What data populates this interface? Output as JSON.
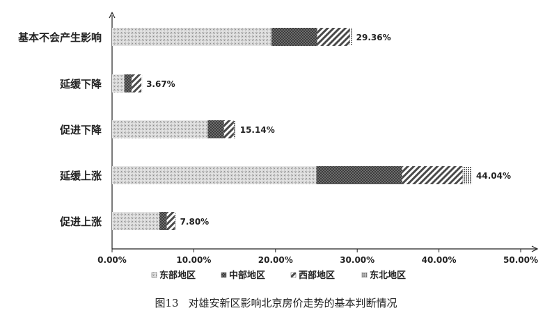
{
  "chart_data": {
    "type": "bar",
    "orientation": "horizontal",
    "stacked": true,
    "categories": [
      "基本不会产生影响",
      "延缓下降",
      "促进下降",
      "延缓上涨",
      "促进上涨"
    ],
    "series": [
      {
        "name": "东部地区",
        "values": [
          19.5,
          1.5,
          11.7,
          25.0,
          5.8
        ]
      },
      {
        "name": "中部地区",
        "values": [
          5.6,
          0.9,
          2.0,
          10.5,
          0.9
        ]
      },
      {
        "name": "西部地区",
        "values": [
          4.0,
          1.2,
          1.2,
          7.4,
          1.0
        ]
      },
      {
        "name": "东北地区",
        "values": [
          0.26,
          0.07,
          0.24,
          1.14,
          0.1
        ]
      }
    ],
    "totals_labels": [
      "29.36%",
      "3.67%",
      "15.14%",
      "44.04%",
      "7.80%"
    ],
    "xlim": [
      0,
      50
    ],
    "x_ticks": [
      "0.00%",
      "10.00%",
      "20.00%",
      "30.00%",
      "40.00%",
      "50.00%"
    ],
    "grid": false,
    "legend_position": "bottom"
  },
  "caption": {
    "figure_number": "图13",
    "title": "对雄安新区影响北京房价走势的基本判断情况"
  },
  "colors": {
    "east": "#cfcfcf",
    "central": "#5a5a5a",
    "west": "#7a7a7a",
    "northeast": "#9a9a9a"
  }
}
